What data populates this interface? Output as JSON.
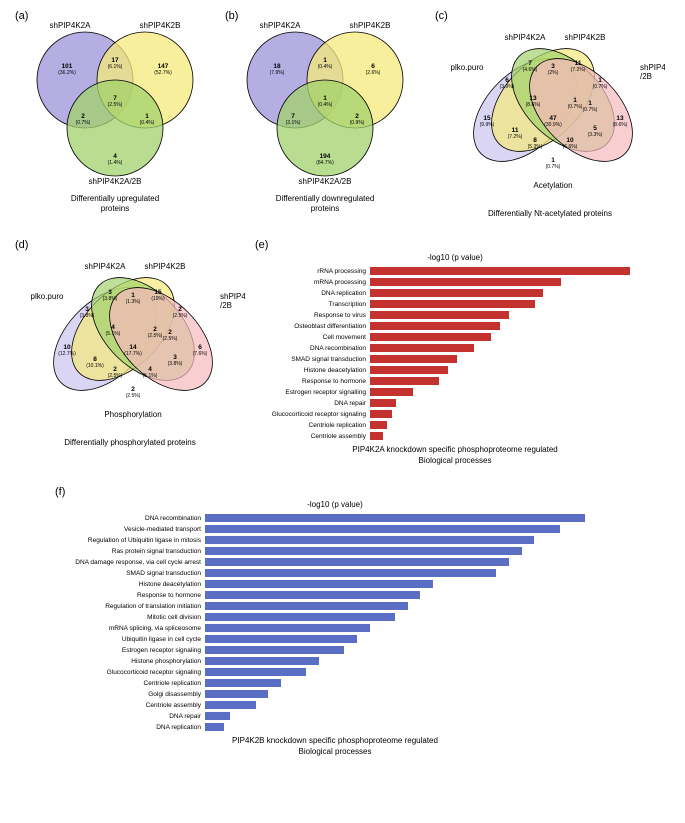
{
  "panels": {
    "a": {
      "label": "(a)",
      "set_labels": [
        "shPIP4K2A",
        "shPIP4K2B",
        "shPIP4K2A/2B"
      ],
      "colors": {
        "A": "#9b93d8",
        "B": "#f4e97a",
        "C": "#a1d16b"
      },
      "regions": {
        "A": "101",
        "A_pct": "(36.2%)",
        "B": "147",
        "B_pct": "(52.7%)",
        "C": "4",
        "C_pct": "(1.4%)",
        "AB": "17",
        "AB_pct": "(6.1%)",
        "AC": "2",
        "AC_pct": "(0.7%)",
        "BC": "1",
        "BC_pct": "(0.4%)",
        "ABC": "7",
        "ABC_pct": "(2.5%)"
      },
      "caption": "Differentially upregulated\nproteins"
    },
    "b": {
      "label": "(b)",
      "set_labels": [
        "shPIP4K2A",
        "shPIP4K2B",
        "shPIP4K2A/2B"
      ],
      "colors": {
        "A": "#9b93d8",
        "B": "#f4e97a",
        "C": "#a1d16b"
      },
      "regions": {
        "A": "18",
        "A_pct": "(7.9%)",
        "B": "6",
        "B_pct": "(2.6%)",
        "C": "194",
        "C_pct": "(84.7%)",
        "AB": "1",
        "AB_pct": "(0.4%)",
        "AC": "7",
        "AC_pct": "(3.1%)",
        "BC": "2",
        "BC_pct": "(0.9%)",
        "ABC": "1",
        "ABC_pct": "(0.4%)"
      },
      "caption": "Differentially downregulated\nproteins"
    },
    "c": {
      "label": "(c)",
      "set_labels": [
        "plko.puro",
        "shPIP4K2A",
        "shPIP4K2B",
        "shPIP4K2A/2B"
      ],
      "colors": {
        "A": "#cbc3ec",
        "B": "#f4e97a",
        "C": "#a1d16b",
        "D": "#f7b9bd"
      },
      "regions": {
        "A": "15",
        "A_pct": "(9.9%)",
        "B": "7",
        "B_pct": "(4.6%)",
        "C": "11",
        "C_pct": "(7.2%)",
        "D": "13",
        "D_pct": "(8.6%)",
        "AB": "6",
        "AB_pct": "(3.9%)",
        "BC": "3",
        "BC_pct": "(2%)",
        "CD": "1",
        "CD_pct": "(0.7%)",
        "AD": "1",
        "AD_pct": "(0.7%)",
        "AC": "11",
        "AC_pct": "(7.2%)",
        "BD": "1",
        "BD_pct": "(0.7%)",
        "ABC": "13",
        "ABC_pct": "(8.6%)",
        "BCD": "1",
        "BCD_pct": "(0.7%)",
        "ACD": "8",
        "ACD_pct": "(5.3%)",
        "ABD": "5",
        "ABD_pct": "(3.3%)",
        "ABCD": "47",
        "ABCD_pct": "(30.9%)",
        "extra": "10",
        "extra_pct": "(6.6%)"
      },
      "side_label": "Acetylation",
      "caption": "Differentially Nt-acetylated proteins"
    },
    "d": {
      "label": "(d)",
      "set_labels": [
        "plko.puro",
        "shPIP4K2A",
        "shPIP4K2B",
        "shPIP4K2A/2B"
      ],
      "colors": {
        "A": "#cbc3ec",
        "B": "#f4e97a",
        "C": "#a1d16b",
        "D": "#f7b9bd"
      },
      "regions": {
        "A": "10",
        "A_pct": "(12.7%)",
        "B": "3",
        "B_pct": "(3.8%)",
        "C": "15",
        "C_pct": "(19%)",
        "D": "6",
        "D_pct": "(7.6%)",
        "AB": "3",
        "AB_pct": "(3.8%)",
        "BC": "1",
        "BC_pct": "(1.3%)",
        "CD": "2",
        "CD_pct": "(2.5%)",
        "AD": "2",
        "AD_pct": "(2.5%)",
        "AC": "8",
        "AC_pct": "(10.1%)",
        "BD": "2",
        "BD_pct": "(2.5%)",
        "ABC": "4",
        "ABC_pct": "(5.1%)",
        "BCD": "2",
        "BCD_pct": "(2.5%)",
        "ACD": "2",
        "ACD_pct": "(2.5%)",
        "ABD": "3",
        "ABD_pct": "(3.8%)",
        "ABCD": "14",
        "ABCD_pct": "(17.7%)",
        "extra": "4",
        "extra_pct": "(5.1%)"
      },
      "side_label": "Phosphorylation",
      "caption": "Differentially phosphorylated proteins"
    },
    "e": {
      "label": "(e)",
      "title": "-log10 (p value)",
      "color": "#c4322f",
      "max": 30,
      "label_width": 115,
      "bars": [
        {
          "cat": "rRNA processing",
          "val": 30
        },
        {
          "cat": "mRNA processing",
          "val": 22
        },
        {
          "cat": "DNA replication",
          "val": 20
        },
        {
          "cat": "Transcription",
          "val": 19
        },
        {
          "cat": "Response to virus",
          "val": 16
        },
        {
          "cat": "Osteoblast differentiation",
          "val": 15
        },
        {
          "cat": "Cell movement",
          "val": 14
        },
        {
          "cat": "DNA recombination",
          "val": 12
        },
        {
          "cat": "SMAD signal transduction",
          "val": 10
        },
        {
          "cat": "Histone deacetylation",
          "val": 9
        },
        {
          "cat": "Response to hormone",
          "val": 8
        },
        {
          "cat": "Estrogen receptor signalling",
          "val": 5
        },
        {
          "cat": "DNA repair",
          "val": 3
        },
        {
          "cat": "Glucocorticoid receptor signaling",
          "val": 2.5
        },
        {
          "cat": "Centriole replication",
          "val": 2
        },
        {
          "cat": "Centriole assembly",
          "val": 1.5
        }
      ],
      "caption": "PIP4K2A knockdown specific phosphoproteome regulated\nBiological processes"
    },
    "f": {
      "label": "(f)",
      "title": "-log10 (p value)",
      "color": "#5a6fc4",
      "max": 30,
      "label_width": 150,
      "bars": [
        {
          "cat": "DNA recombination",
          "val": 30
        },
        {
          "cat": "Vesicle-mediated transport",
          "val": 28
        },
        {
          "cat": "Regulation of Ubiquitin ligase in mitosis",
          "val": 26
        },
        {
          "cat": "Ras protein signal transduction",
          "val": 25
        },
        {
          "cat": "DNA damage response, via cell cycle arrest",
          "val": 24
        },
        {
          "cat": "SMAD signal transduction",
          "val": 23
        },
        {
          "cat": "Histone deacetylation",
          "val": 18
        },
        {
          "cat": "Response to hormone",
          "val": 17
        },
        {
          "cat": "Regulation of translation initiation",
          "val": 16
        },
        {
          "cat": "Mitotic cell division",
          "val": 15
        },
        {
          "cat": "mRNA splicing, via spliceosome",
          "val": 13
        },
        {
          "cat": "Ubiquitin ligase in cell cycle",
          "val": 12
        },
        {
          "cat": "Estrogen receptor signaling",
          "val": 11
        },
        {
          "cat": "Histone phosphorylation",
          "val": 9
        },
        {
          "cat": "Glucocorticoid receptor signaling",
          "val": 8
        },
        {
          "cat": "Centriole replication",
          "val": 6
        },
        {
          "cat": "Golgi disassembly",
          "val": 5
        },
        {
          "cat": "Centriole assembly",
          "val": 4
        },
        {
          "cat": "DNA repair",
          "val": 2
        },
        {
          "cat": "DNA replication",
          "val": 1.5
        }
      ],
      "caption": "PIP4K2B knockdown specific phosphoproteome regulated\nBiological processes"
    }
  }
}
